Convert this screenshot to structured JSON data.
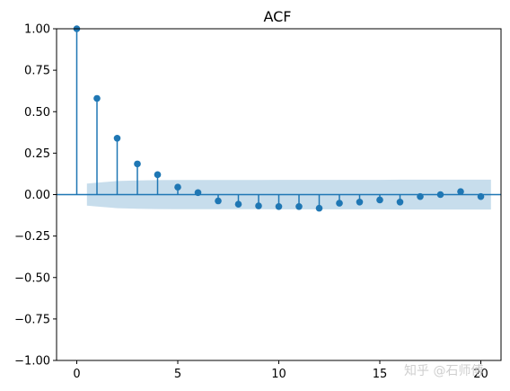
{
  "chart_data": {
    "type": "stem",
    "title": "ACF",
    "xlabel": "",
    "ylabel": "",
    "xlim": [
      -1,
      21
    ],
    "ylim": [
      -1.0,
      1.0
    ],
    "x_ticks": [
      0,
      5,
      10,
      15,
      20
    ],
    "y_ticks": [
      -1.0,
      -0.75,
      -0.5,
      -0.25,
      0.0,
      0.25,
      0.5,
      0.75,
      1.0
    ],
    "y_tick_labels": [
      "−1.00",
      "−0.75",
      "−0.50",
      "−0.25",
      "0.00",
      "0.25",
      "0.50",
      "0.75",
      "1.00"
    ],
    "lags": [
      0,
      1,
      2,
      3,
      4,
      5,
      6,
      7,
      8,
      9,
      10,
      11,
      12,
      13,
      14,
      15,
      16,
      17,
      18,
      19,
      20
    ],
    "values": [
      1.0,
      0.58,
      0.34,
      0.185,
      0.12,
      0.045,
      0.012,
      -0.038,
      -0.058,
      -0.068,
      -0.072,
      -0.072,
      -0.082,
      -0.052,
      -0.045,
      -0.032,
      -0.045,
      -0.012,
      0.0,
      0.018,
      -0.012
    ],
    "confidence_band": {
      "x": [
        0.5,
        1,
        2,
        3,
        4,
        5,
        6,
        7,
        8,
        9,
        10,
        11,
        12,
        13,
        14,
        15,
        16,
        17,
        18,
        19,
        20,
        20.5
      ],
      "upper": [
        0.066,
        0.072,
        0.082,
        0.085,
        0.087,
        0.088,
        0.088,
        0.088,
        0.088,
        0.088,
        0.089,
        0.089,
        0.089,
        0.089,
        0.089,
        0.089,
        0.09,
        0.09,
        0.09,
        0.09,
        0.09,
        0.09
      ]
    },
    "colors": {
      "stem": "#1f77b4",
      "band": "#1f77b4",
      "zero_line": "#1f77b4"
    },
    "grid": false
  },
  "watermark": "知乎 @石师傅"
}
